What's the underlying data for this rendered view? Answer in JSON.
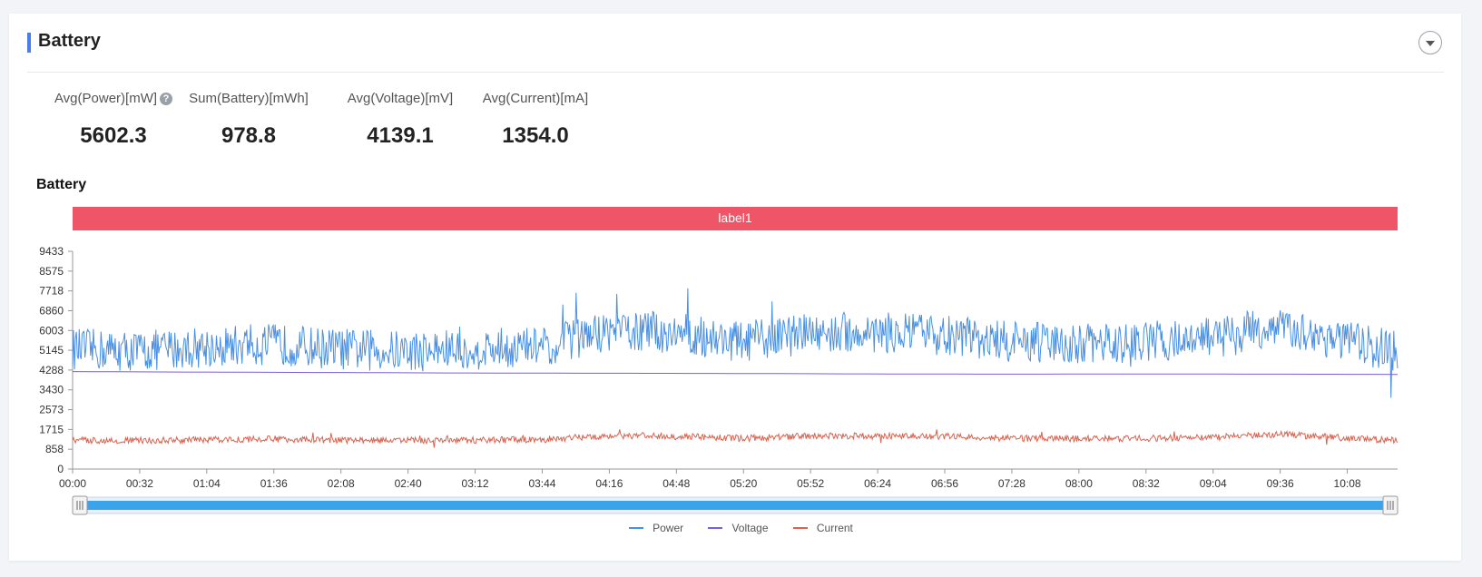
{
  "panel": {
    "title": "Battery"
  },
  "metrics": [
    {
      "label": "Avg(Power)[mW]",
      "value": "5602.3"
    },
    {
      "label": "Sum(Battery)[mWh]",
      "value": "978.8"
    },
    {
      "label": "Avg(Voltage)[mV]",
      "value": "4139.1"
    },
    {
      "label": "Avg(Current)[mA]",
      "value": "1354.0"
    }
  ],
  "help_icon": "question-circle-icon",
  "collapse_icon": "caret-down-icon",
  "chart_data": {
    "type": "line",
    "title": "Battery",
    "label_band": {
      "text": "label1",
      "color": "#ee5566"
    },
    "y_ticks": [
      "0",
      "858",
      "1715",
      "2573",
      "3430",
      "4288",
      "5145",
      "6003",
      "6860",
      "7718",
      "8575",
      "9433"
    ],
    "ylim": [
      0,
      9433
    ],
    "x_ticks": [
      "00:00",
      "00:32",
      "01:04",
      "01:36",
      "02:08",
      "02:40",
      "03:12",
      "03:44",
      "04:16",
      "04:48",
      "05:20",
      "05:52",
      "06:24",
      "06:56",
      "07:28",
      "08:00",
      "08:32",
      "09:04",
      "09:36",
      "10:08"
    ],
    "series": [
      {
        "name": "Power",
        "color": "#4a90e2",
        "x": [
          "00:00",
          "00:32",
          "01:04",
          "01:36",
          "02:08",
          "02:40",
          "03:12",
          "03:44",
          "04:16",
          "04:48",
          "05:20",
          "05:52",
          "06:24",
          "06:56",
          "07:28",
          "08:00",
          "08:32",
          "09:04",
          "09:36",
          "10:08",
          "10:32"
        ],
        "values": [
          5200,
          5100,
          5300,
          5400,
          5200,
          5100,
          5200,
          5300,
          6000,
          5900,
          5500,
          5900,
          5900,
          5800,
          5500,
          5400,
          5500,
          5700,
          6200,
          5500,
          5100
        ]
      },
      {
        "name": "Voltage",
        "color": "#7b5fd6",
        "x": [
          "00:00",
          "01:04",
          "02:08",
          "03:12",
          "04:16",
          "05:20",
          "06:24",
          "07:28",
          "08:32",
          "09:36",
          "10:32"
        ],
        "values": [
          4220,
          4200,
          4180,
          4160,
          4150,
          4140,
          4120,
          4110,
          4120,
          4110,
          4100
        ]
      },
      {
        "name": "Current",
        "color": "#d9634f",
        "x": [
          "00:00",
          "00:32",
          "01:04",
          "01:36",
          "02:08",
          "02:40",
          "03:12",
          "03:44",
          "04:16",
          "04:48",
          "05:20",
          "05:52",
          "06:24",
          "06:56",
          "07:28",
          "08:00",
          "08:32",
          "09:04",
          "09:36",
          "10:08",
          "10:32"
        ],
        "values": [
          1250,
          1230,
          1270,
          1300,
          1250,
          1240,
          1250,
          1280,
          1450,
          1430,
          1330,
          1440,
          1430,
          1420,
          1330,
          1310,
          1330,
          1380,
          1500,
          1340,
          1240
        ]
      }
    ],
    "legend_position": "bottom-center"
  }
}
